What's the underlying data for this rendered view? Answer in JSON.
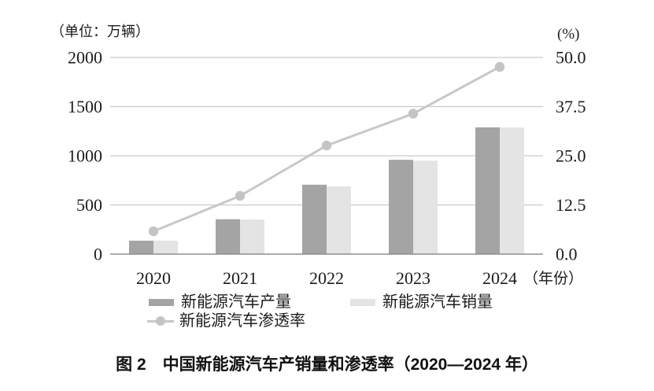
{
  "caption": "图 2　中国新能源汽车产销量和渗透率（2020—2024 年）",
  "legend": {
    "production": "新能源汽车产量",
    "sales": "新能源汽车销量",
    "penetration": "新能源汽车渗透率"
  },
  "colors": {
    "production_bar": "#a4a4a4",
    "sales_bar": "#e4e4e4",
    "penetration_line": "#c8c8c8",
    "penetration_marker": "#c4c4c4",
    "gridline": "#cbcbcb",
    "baseline": "#8f8f8f",
    "text": "#1c1c1c"
  },
  "chart_data": {
    "type": "bar",
    "subtype": "grouped-bars-with-line",
    "categories": [
      "2020",
      "2021",
      "2022",
      "2023",
      "2024"
    ],
    "series": [
      {
        "name": "新能源汽车产量",
        "type": "bar",
        "axis": "left",
        "color": "#a4a4a4",
        "values": [
          136.6,
          354.5,
          705.8,
          958.7,
          1288.8
        ]
      },
      {
        "name": "新能源汽车销量",
        "type": "bar",
        "axis": "left",
        "color": "#e4e4e4",
        "values": [
          136.7,
          352.1,
          688.7,
          949.5,
          1286.6
        ]
      },
      {
        "name": "新能源汽车渗透率",
        "type": "line",
        "axis": "right",
        "color": "#c8c8c8",
        "values": [
          5.8,
          14.8,
          27.6,
          35.7,
          47.6
        ]
      }
    ],
    "left_axis": {
      "title": "（单位：万辆）",
      "min": 0,
      "max": 2000,
      "ticks": [
        "0",
        "500",
        "1000",
        "1500",
        "2000"
      ]
    },
    "right_axis": {
      "title": "(%)",
      "min": 0,
      "max": 50,
      "ticks": [
        "0.0",
        "12.5",
        "25.0",
        "37.5",
        "50.0"
      ]
    },
    "xlabel_suffix": "（年份）",
    "grid": true,
    "legend_position": "bottom",
    "title": "图 2　中国新能源汽车产销量和渗透率（2020—2024 年）"
  }
}
